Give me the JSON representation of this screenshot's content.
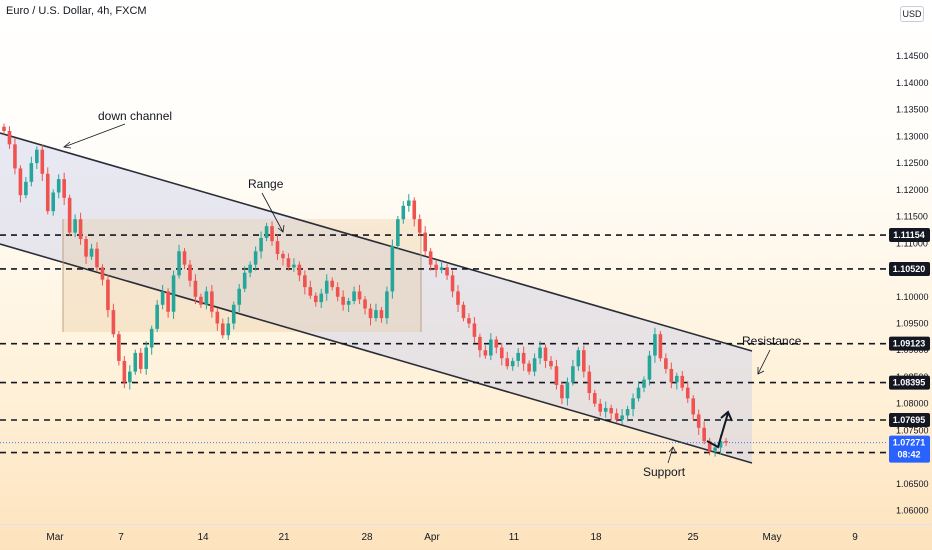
{
  "header": {
    "title": "Euro / U.S. Dollar, 4h, FXCM",
    "currency_button": "USD"
  },
  "chart_data": {
    "type": "candlestick",
    "ylim": [
      1.0575,
      1.1555
    ],
    "y_ticks": [
      "1.14500",
      "1.14000",
      "1.13500",
      "1.13000",
      "1.12500",
      "1.12000",
      "1.11500",
      "1.11000",
      "1.10500",
      "1.10000",
      "1.09500",
      "1.09000",
      "1.08500",
      "1.08000",
      "1.07500",
      "1.07000",
      "1.06500",
      "1.06000"
    ],
    "x_labels": [
      "Mar",
      "7",
      "14",
      "21",
      "28",
      "Apr",
      "11",
      "18",
      "25",
      "May",
      "9"
    ],
    "levels": [
      {
        "label": "1.11154",
        "value": 1.11154
      },
      {
        "label": "1.10520",
        "value": 1.1052
      },
      {
        "label": "1.09123",
        "value": 1.09123
      },
      {
        "label": "1.08395",
        "value": 1.08395
      },
      {
        "label": "1.07695",
        "value": 1.07695
      },
      {
        "label": "1.07086",
        "value": 1.07086
      }
    ],
    "last_price": {
      "value": "1.07271",
      "countdown": "08:42",
      "numeric": 1.07271
    },
    "annotations": [
      "down channel",
      "Range",
      "Resistance",
      "Support"
    ],
    "colors": {
      "up": "#26a69a",
      "down": "#ef5350",
      "channel_line": "#2a2e39",
      "last_price": "#2962ff",
      "level_tag": "#131722"
    },
    "closes": [
      1.131,
      1.1285,
      1.124,
      1.119,
      1.1215,
      1.125,
      1.1275,
      1.123,
      1.116,
      1.1195,
      1.122,
      1.1185,
      1.112,
      1.1145,
      1.1108,
      1.1075,
      1.109,
      1.1055,
      1.1032,
      1.0975,
      1.093,
      1.088,
      1.084,
      1.086,
      1.0895,
      1.0865,
      1.0905,
      1.094,
      1.0985,
      1.101,
      1.0972,
      1.104,
      1.1085,
      1.106,
      1.103,
      1.1,
      1.0985,
      1.101,
      1.0972,
      1.095,
      1.0928,
      1.095,
      1.0985,
      1.1015,
      1.1045,
      1.106,
      1.1085,
      1.111,
      1.1132,
      1.1104,
      1.108,
      1.1072,
      1.1055,
      1.106,
      1.104,
      1.1018,
      1.1002,
      1.099,
      1.1006,
      1.103,
      1.1018,
      1.1,
      1.0985,
      1.0992,
      1.101,
      1.0995,
      1.0978,
      1.096,
      1.0975,
      1.096,
      1.101,
      1.1095,
      1.1145,
      1.117,
      1.118,
      1.1145,
      1.112,
      1.1085,
      1.106,
      1.105,
      1.1055,
      1.104,
      1.101,
      1.0985,
      1.096,
      1.095,
      1.0925,
      1.09,
      1.089,
      1.092,
      1.0905,
      1.0885,
      1.087,
      1.088,
      1.0895,
      1.0875,
      1.086,
      1.0885,
      1.0905,
      1.088,
      1.087,
      1.0835,
      1.081,
      1.084,
      1.087,
      1.09,
      1.086,
      1.082,
      1.08,
      1.0785,
      1.0792,
      1.0782,
      1.077,
      1.0778,
      1.079,
      1.081,
      1.083,
      1.0845,
      1.089,
      1.093,
      1.0885,
      1.0865,
      1.084,
      1.0852,
      1.083,
      1.081,
      1.078,
      1.0755,
      1.073,
      1.0712,
      1.0718,
      1.073,
      1.07271
    ]
  }
}
